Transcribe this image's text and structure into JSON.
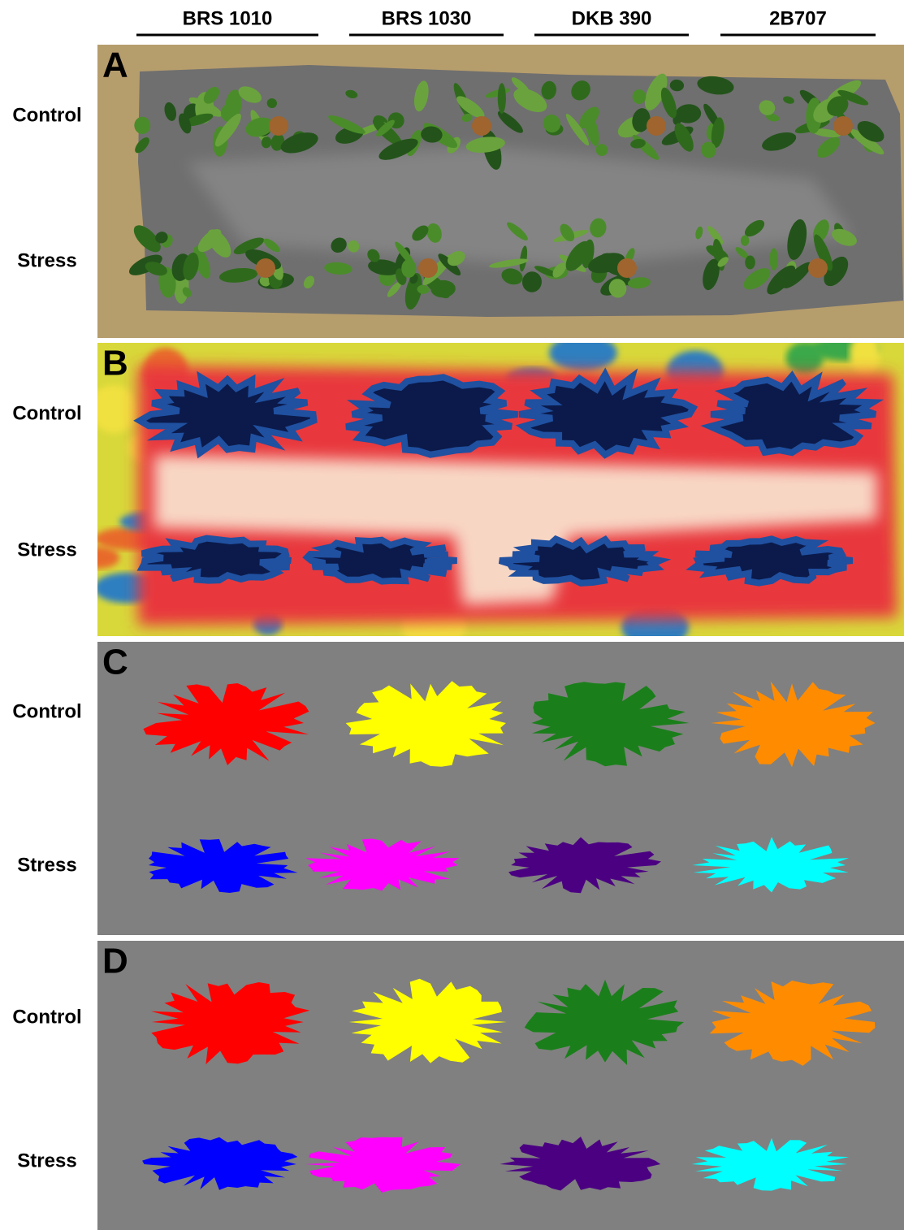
{
  "columns": [
    "BRS 1010",
    "BRS 1030",
    "DKB 390",
    "2B707"
  ],
  "panels": [
    {
      "letter": "A",
      "rows": [
        "Control",
        "Stress"
      ]
    },
    {
      "letter": "B",
      "rows": [
        "Control",
        "Stress"
      ]
    },
    {
      "letter": "C",
      "rows": [
        "Control",
        "Stress"
      ]
    },
    {
      "letter": "D",
      "rows": [
        "Control",
        "Stress"
      ]
    }
  ]
}
